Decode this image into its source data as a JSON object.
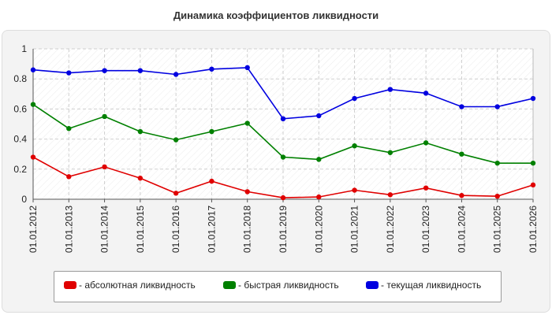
{
  "chart_data": {
    "type": "line",
    "title": "Динамика коэффициентов ликвидности",
    "xlabel": "",
    "ylabel": "",
    "ylim": [
      0,
      1
    ],
    "yticks": [
      "0",
      "0.2",
      "0.4",
      "0.6",
      "0.8",
      "1"
    ],
    "grid": true,
    "legend_position": "bottom",
    "categories": [
      "01.01.2012",
      "01.01.2013",
      "01.01.2014",
      "01.01.2015",
      "01.01.2016",
      "01.01.2017",
      "01.01.2018",
      "01.01.2019",
      "01.01.2020",
      "01.01.2021",
      "01.01.2022",
      "01.01.2023",
      "01.01.2024",
      "01.01.2025",
      "01.01.2026"
    ],
    "series": [
      {
        "name": "- абсолютная ликвидность",
        "color": "#e00000",
        "values": [
          0.28,
          0.15,
          0.215,
          0.14,
          0.04,
          0.12,
          0.05,
          0.01,
          0.015,
          0.06,
          0.03,
          0.075,
          0.025,
          0.02,
          0.095
        ]
      },
      {
        "name": "- быстрая ликвидность",
        "color": "#008000",
        "values": [
          0.63,
          0.47,
          0.55,
          0.45,
          0.395,
          0.45,
          0.505,
          0.28,
          0.265,
          0.355,
          0.31,
          0.375,
          0.3,
          0.24,
          0.24
        ]
      },
      {
        "name": "- текущая ликвидность",
        "color": "#0000e0",
        "values": [
          0.86,
          0.84,
          0.855,
          0.855,
          0.83,
          0.865,
          0.875,
          0.535,
          0.555,
          0.67,
          0.73,
          0.705,
          0.615,
          0.615,
          0.67
        ]
      }
    ]
  }
}
